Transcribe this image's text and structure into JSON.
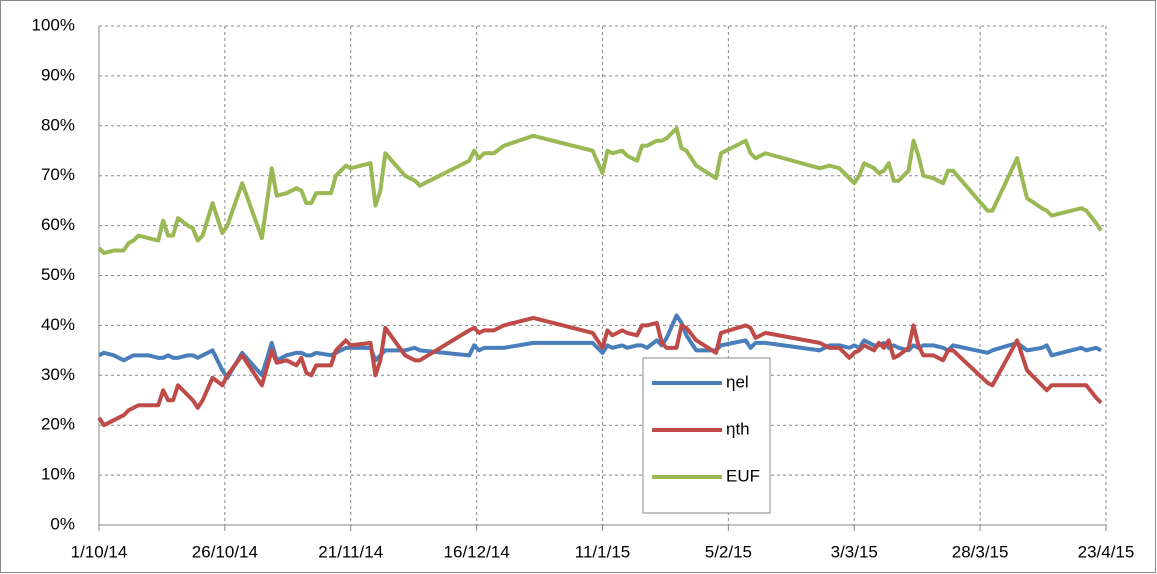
{
  "chart_data": {
    "type": "line",
    "x": [
      0,
      1,
      3,
      5,
      6,
      7,
      8,
      10,
      12,
      13,
      14,
      15,
      16,
      18,
      19,
      20,
      21,
      23,
      25,
      26,
      29,
      33,
      35,
      36,
      38,
      40,
      41,
      42,
      43,
      44,
      47,
      48,
      49,
      50,
      51,
      55,
      56,
      57,
      58,
      62,
      64,
      65,
      75,
      76,
      77,
      78,
      80,
      82,
      88,
      100,
      102,
      103,
      104,
      106,
      107,
      109,
      110,
      111,
      113,
      114,
      115,
      117,
      118,
      119,
      121,
      125,
      126,
      131,
      132,
      133,
      135,
      146,
      148,
      150,
      152,
      153,
      154,
      155,
      157,
      158,
      159,
      160,
      161,
      162,
      164,
      165,
      166,
      167,
      169,
      171,
      172,
      173,
      180,
      181,
      186,
      188,
      191,
      192,
      193,
      199,
      200,
      202,
      203
    ],
    "series": [
      {
        "name": "ηel",
        "color": "#4a7ebb",
        "values": [
          34,
          34.5,
          34,
          33,
          33.5,
          34,
          34,
          34,
          33.5,
          33.5,
          34,
          33.5,
          33.5,
          34,
          34,
          33.5,
          34,
          35,
          31,
          29.5,
          34.5,
          30,
          36.5,
          33,
          34,
          34.5,
          34.5,
          34,
          34,
          34.5,
          34,
          34.5,
          35,
          35.5,
          35.5,
          35.5,
          33,
          34,
          35,
          35,
          35.5,
          35,
          34,
          36,
          35,
          35.5,
          35.5,
          35.5,
          36.5,
          36.5,
          34.5,
          36,
          35.5,
          36,
          35.5,
          36,
          36,
          35.5,
          37,
          36,
          37.5,
          42,
          40.5,
          38,
          35,
          35,
          36,
          37,
          35.5,
          36.5,
          36.5,
          35,
          36,
          36,
          35.5,
          36,
          35.5,
          37,
          36,
          36,
          36.5,
          35.5,
          36,
          35.5,
          35,
          36,
          35.5,
          36,
          36,
          35.5,
          35,
          36,
          34.5,
          35,
          36.5,
          35,
          35.5,
          36,
          34,
          35.5,
          35,
          35.5,
          35
        ]
      },
      {
        "name": "ηth",
        "color": "#be4b48",
        "values": [
          21.5,
          20,
          21,
          22,
          23,
          23.5,
          24,
          24,
          24,
          27,
          25,
          25,
          28,
          26,
          25,
          23.5,
          25,
          29.5,
          28,
          30,
          34,
          28,
          35,
          32.5,
          33,
          32,
          33.5,
          30.5,
          30,
          32,
          32,
          35,
          36,
          37,
          36,
          36.5,
          30,
          33,
          39.5,
          34,
          33,
          33,
          39,
          39.5,
          38.5,
          39,
          39,
          40,
          41.5,
          38.5,
          35.5,
          39,
          38,
          39,
          38.5,
          38,
          40,
          40,
          40.5,
          36.5,
          35.5,
          35.5,
          40,
          39.5,
          37,
          34.5,
          38.5,
          40,
          39.5,
          37.5,
          38.5,
          36.5,
          35.5,
          35.5,
          33.5,
          34.5,
          35,
          36,
          35,
          36.5,
          35.5,
          37,
          33.5,
          34,
          35.5,
          40,
          36,
          34,
          34,
          33,
          35,
          35,
          28.5,
          28,
          37,
          31,
          28,
          27,
          28,
          28,
          28,
          25.5,
          24.5
        ]
      },
      {
        "name": "EUF",
        "color": "#98b954",
        "values": [
          55.5,
          54.5,
          55,
          55,
          56.5,
          57,
          58,
          57.5,
          57,
          61,
          58,
          58,
          61.5,
          60,
          59.5,
          57,
          58,
          64.5,
          58.5,
          60,
          68.5,
          57.5,
          71.5,
          66,
          66.5,
          67.5,
          67,
          64.5,
          64.5,
          66.5,
          66.5,
          70,
          71,
          72,
          71.5,
          72.5,
          64,
          67,
          74.5,
          70,
          69,
          68,
          73,
          75,
          73.5,
          74.5,
          74.5,
          76,
          78,
          75,
          70.5,
          75,
          74.5,
          75,
          74,
          73,
          76,
          76,
          77,
          77,
          77.5,
          79.5,
          75.5,
          75,
          72,
          69.5,
          74.5,
          77,
          74.5,
          73.5,
          74.5,
          71.5,
          72,
          71.5,
          69.5,
          68.5,
          70,
          72.5,
          71.5,
          70.5,
          71,
          72.5,
          69,
          69,
          71,
          77,
          74,
          70,
          69.5,
          68.5,
          71,
          71,
          63,
          63,
          73.5,
          65.5,
          63.5,
          63,
          62,
          63.5,
          63,
          60.5,
          59
        ]
      }
    ],
    "xlim": [
      0,
      204
    ],
    "xticks": [
      {
        "value": 0,
        "label": "1/10/14"
      },
      {
        "value": 25.5,
        "label": "26/10/14"
      },
      {
        "value": 51,
        "label": "21/11/14"
      },
      {
        "value": 76.5,
        "label": "16/12/14"
      },
      {
        "value": 102,
        "label": "11/1/15"
      },
      {
        "value": 127.5,
        "label": "5/2/15"
      },
      {
        "value": 153,
        "label": "3/3/15"
      },
      {
        "value": 178.5,
        "label": "28/3/15"
      },
      {
        "value": 204,
        "label": "23/4/15"
      }
    ],
    "ylim": [
      0,
      100
    ],
    "yticks": [
      {
        "value": 0,
        "label": "0%"
      },
      {
        "value": 10,
        "label": "10%"
      },
      {
        "value": 20,
        "label": "20%"
      },
      {
        "value": 30,
        "label": "30%"
      },
      {
        "value": 40,
        "label": "40%"
      },
      {
        "value": 50,
        "label": "50%"
      },
      {
        "value": 60,
        "label": "60%"
      },
      {
        "value": 70,
        "label": "70%"
      },
      {
        "value": 80,
        "label": "80%"
      },
      {
        "value": 90,
        "label": "90%"
      },
      {
        "value": 100,
        "label": "100%"
      }
    ],
    "grid": true
  }
}
